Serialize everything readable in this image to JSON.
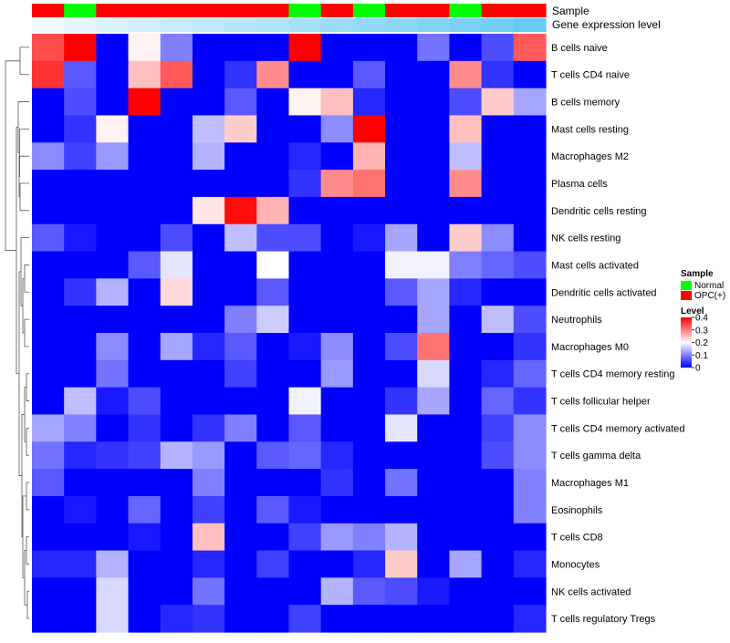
{
  "chart_data": {
    "type": "heatmap",
    "annotation_labels": {
      "sample": "Sample",
      "gene_expression": "Gene expression level"
    },
    "legend": {
      "sample": {
        "title": "Sample",
        "items": [
          {
            "label": "Normal",
            "color": "#00ff00"
          },
          {
            "label": "OPC(+)",
            "color": "#ff0000"
          }
        ]
      },
      "level": {
        "title": "Level",
        "ticks": [
          "0.4",
          "0.3",
          "0.2",
          "0.1",
          "0"
        ],
        "tick_values": [
          0.4,
          0.3,
          0.2,
          0.1,
          0
        ]
      }
    },
    "color_scale": {
      "min": 0,
      "max": 0.4,
      "stops": [
        {
          "value": 0,
          "color": "#0000ff"
        },
        {
          "value": 0.2,
          "color": "#ffffff"
        },
        {
          "value": 0.4,
          "color": "#ff0000"
        }
      ]
    },
    "sample_annotation": [
      "OPC(+)",
      "Normal",
      "OPC(+)",
      "OPC(+)",
      "OPC(+)",
      "OPC(+)",
      "OPC(+)",
      "OPC(+)",
      "Normal",
      "OPC(+)",
      "Normal",
      "OPC(+)",
      "OPC(+)",
      "Normal",
      "OPC(+)",
      "OPC(+)"
    ],
    "gene_expression_annotation": [
      0.92,
      0.86,
      0.8,
      0.75,
      0.7,
      0.66,
      0.62,
      0.58,
      0.52,
      0.46,
      0.42,
      0.38,
      0.33,
      0.28,
      0.24,
      0.18
    ],
    "rows": [
      "B cells naive",
      "T cells CD4 naive",
      "B cells memory",
      "Mast cells resting",
      "Macrophages M2",
      "Plasma cells",
      "Dendritic cells resting",
      "NK cells resting",
      "Mast cells activated",
      "Dendritic cells activated",
      "Neutrophils",
      "Macrophages M0",
      "T cells CD4 memory resting",
      "T cells follicular helper",
      "T cells CD4 memory activated",
      "T cells gamma delta",
      "Macrophages M1",
      "Eosinophils",
      "T cells CD8",
      "Monocytes",
      "NK cells activated",
      "T cells regulatory  Tregs"
    ],
    "values": [
      [
        0.34,
        0.4,
        0.0,
        0.21,
        0.1,
        0.0,
        0.0,
        0.0,
        0.4,
        0.0,
        0.0,
        0.0,
        0.09,
        0.0,
        0.06,
        0.33
      ],
      [
        0.36,
        0.07,
        0.0,
        0.25,
        0.33,
        0.0,
        0.04,
        0.29,
        0.0,
        0.0,
        0.07,
        0.0,
        0.0,
        0.29,
        0.04,
        0.0
      ],
      [
        0.0,
        0.06,
        0.0,
        0.4,
        0.0,
        0.0,
        0.07,
        0.0,
        0.21,
        0.25,
        0.03,
        0.0,
        0.0,
        0.06,
        0.24,
        0.13
      ],
      [
        0.0,
        0.04,
        0.21,
        0.0,
        0.0,
        0.15,
        0.24,
        0.0,
        0.0,
        0.11,
        0.4,
        0.0,
        0.0,
        0.25,
        0.0,
        0.0
      ],
      [
        0.11,
        0.05,
        0.12,
        0.0,
        0.0,
        0.14,
        0.0,
        0.0,
        0.03,
        0.0,
        0.26,
        0.0,
        0.0,
        0.15,
        0.0,
        0.0
      ],
      [
        0.0,
        0.0,
        0.0,
        0.0,
        0.0,
        0.0,
        0.0,
        0.0,
        0.04,
        0.29,
        0.31,
        0.0,
        0.0,
        0.29,
        0.0,
        0.0
      ],
      [
        0.0,
        0.0,
        0.0,
        0.0,
        0.0,
        0.22,
        0.39,
        0.26,
        0.0,
        0.0,
        0.0,
        0.0,
        0.0,
        0.0,
        0.0,
        0.0
      ],
      [
        0.07,
        0.02,
        0.0,
        0.0,
        0.06,
        0.0,
        0.15,
        0.06,
        0.06,
        0.0,
        0.02,
        0.13,
        0.0,
        0.24,
        0.11,
        0.0
      ],
      [
        0.0,
        0.0,
        0.0,
        0.07,
        0.18,
        0.0,
        0.0,
        0.2,
        0.0,
        0.0,
        0.0,
        0.19,
        0.19,
        0.1,
        0.08,
        0.06
      ],
      [
        0.0,
        0.04,
        0.14,
        0.0,
        0.23,
        0.0,
        0.0,
        0.07,
        0.0,
        0.0,
        0.0,
        0.07,
        0.13,
        0.03,
        0.0,
        0.0
      ],
      [
        0.0,
        0.0,
        0.0,
        0.0,
        0.0,
        0.0,
        0.1,
        0.16,
        0.0,
        0.0,
        0.0,
        0.0,
        0.13,
        0.0,
        0.15,
        0.06
      ],
      [
        0.0,
        0.0,
        0.11,
        0.0,
        0.13,
        0.03,
        0.07,
        0.0,
        0.02,
        0.11,
        0.0,
        0.06,
        0.31,
        0.0,
        0.0,
        0.04
      ],
      [
        0.0,
        0.0,
        0.09,
        0.0,
        0.0,
        0.0,
        0.05,
        0.0,
        0.0,
        0.12,
        0.0,
        0.0,
        0.17,
        0.0,
        0.03,
        0.08
      ],
      [
        0.0,
        0.15,
        0.02,
        0.06,
        0.0,
        0.0,
        0.0,
        0.0,
        0.19,
        0.0,
        0.0,
        0.04,
        0.13,
        0.0,
        0.08,
        0.04
      ],
      [
        0.13,
        0.1,
        0.0,
        0.04,
        0.0,
        0.04,
        0.1,
        0.0,
        0.07,
        0.0,
        0.0,
        0.18,
        0.0,
        0.0,
        0.05,
        0.11
      ],
      [
        0.09,
        0.03,
        0.04,
        0.05,
        0.14,
        0.12,
        0.0,
        0.07,
        0.08,
        0.03,
        0.0,
        0.0,
        0.0,
        0.0,
        0.06,
        0.11
      ],
      [
        0.07,
        0.0,
        0.0,
        0.0,
        0.0,
        0.1,
        0.0,
        0.0,
        0.0,
        0.04,
        0.0,
        0.09,
        0.0,
        0.0,
        0.0,
        0.1
      ],
      [
        0.0,
        0.02,
        0.0,
        0.08,
        0.0,
        0.05,
        0.0,
        0.07,
        0.02,
        0.0,
        0.0,
        0.0,
        0.0,
        0.0,
        0.0,
        0.1
      ],
      [
        0.0,
        0.0,
        0.0,
        0.02,
        0.0,
        0.25,
        0.0,
        0.0,
        0.05,
        0.12,
        0.1,
        0.14,
        0.0,
        0.0,
        0.0,
        0.0
      ],
      [
        0.03,
        0.03,
        0.14,
        0.0,
        0.0,
        0.03,
        0.0,
        0.05,
        0.0,
        0.0,
        0.03,
        0.24,
        0.0,
        0.13,
        0.0,
        0.03
      ],
      [
        0.0,
        0.0,
        0.17,
        0.0,
        0.0,
        0.09,
        0.0,
        0.0,
        0.0,
        0.14,
        0.07,
        0.06,
        0.02,
        0.0,
        0.0,
        0.0
      ],
      [
        0.0,
        0.0,
        0.17,
        0.0,
        0.03,
        0.04,
        0.0,
        0.0,
        0.05,
        0.0,
        0.0,
        0.0,
        0.0,
        0.0,
        0.0,
        0.03
      ]
    ]
  }
}
